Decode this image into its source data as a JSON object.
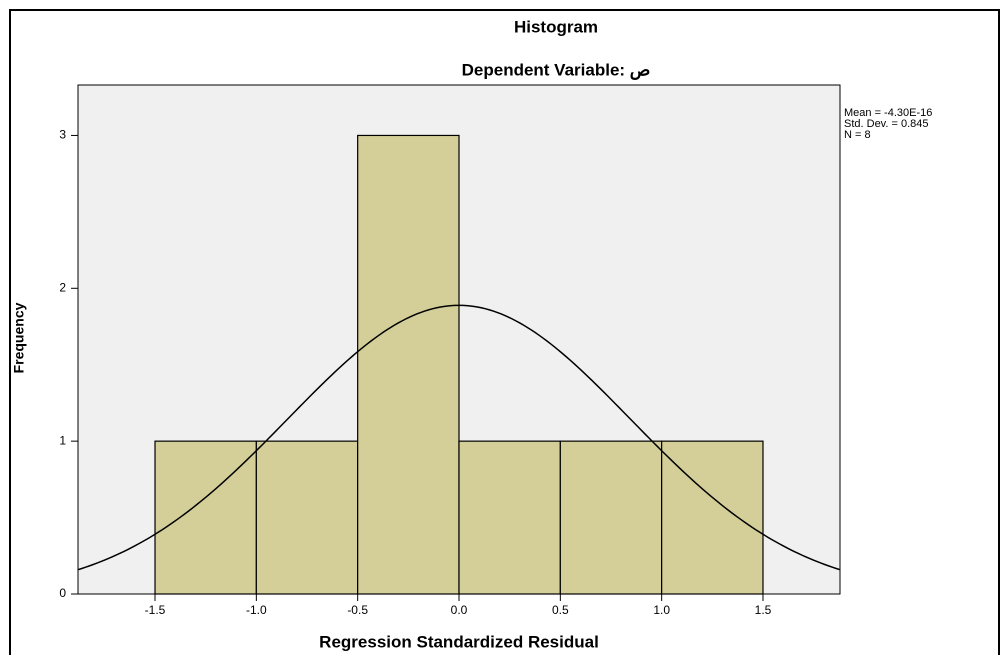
{
  "chart_data": {
    "type": "histogram",
    "title": "Histogram",
    "subtitle": "Dependent Variable: ص",
    "x_label": "Regression Standardized Residual",
    "y_label": "Frequency",
    "bins": [
      -1.5,
      -1.0,
      -0.5,
      0.0,
      0.5,
      1.0,
      1.5
    ],
    "values": [
      1,
      1,
      3,
      1,
      1,
      1
    ],
    "color": "#d4cf98",
    "xlim": [
      -1.88,
      1.88
    ],
    "ylim": [
      0,
      3.33
    ],
    "xticks": [
      -1.5,
      {
        "value": -1,
        "label": "-1.0"
      },
      -0.5,
      {
        "value": 0,
        "label": "0.0"
      },
      0.5,
      {
        "value": 1,
        "label": "1.0"
      },
      1.5
    ],
    "yticks": [
      0,
      1,
      2,
      3
    ],
    "stats": [
      {
        "label": "Mean = -4.30E-16",
        "value": -4.3e-16
      },
      {
        "label": "Std. Dev. = 0.845",
        "value": 0.845
      },
      {
        "label": "N = 8",
        "value": 8
      }
    ]
  }
}
